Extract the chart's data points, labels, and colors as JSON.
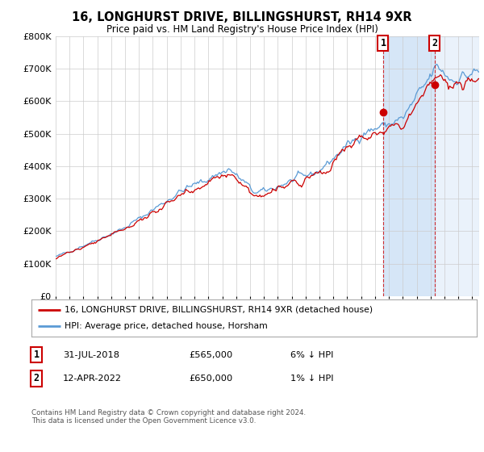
{
  "title": "16, LONGHURST DRIVE, BILLINGSHURST, RH14 9XR",
  "subtitle": "Price paid vs. HM Land Registry's House Price Index (HPI)",
  "legend_line1": "16, LONGHURST DRIVE, BILLINGSHURST, RH14 9XR (detached house)",
  "legend_line2": "HPI: Average price, detached house, Horsham",
  "transaction1_date": "31-JUL-2018",
  "transaction1_price": "£565,000",
  "transaction1_hpi": "6% ↓ HPI",
  "transaction2_date": "12-APR-2022",
  "transaction2_price": "£650,000",
  "transaction2_hpi": "1% ↓ HPI",
  "copyright": "Contains HM Land Registry data © Crown copyright and database right 2024.\nThis data is licensed under the Open Government Licence v3.0.",
  "hpi_color": "#5b9bd5",
  "price_color": "#cc0000",
  "marker_color": "#cc0000",
  "shade_color": "#cce0f5",
  "vline_color": "#cc0000",
  "ylim": [
    0,
    800000
  ],
  "yticks": [
    0,
    100000,
    200000,
    300000,
    400000,
    500000,
    600000,
    700000,
    800000
  ],
  "background_color": "#ffffff",
  "plot_bg_color": "#ffffff",
  "grid_color": "#cccccc"
}
